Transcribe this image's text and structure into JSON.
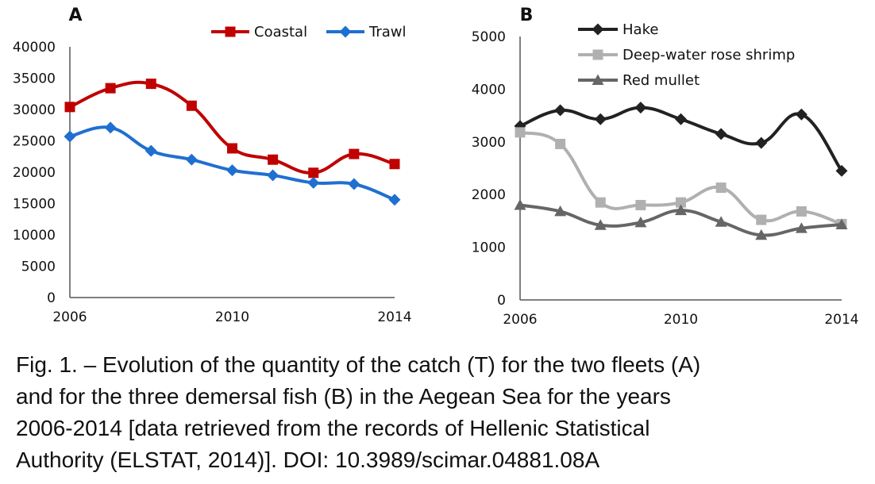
{
  "chart_data": [
    {
      "type": "line",
      "panel_label": "A",
      "x": [
        2006,
        2007,
        2008,
        2009,
        2010,
        2011,
        2012,
        2013,
        2014
      ],
      "xticks": [
        "2006",
        "2010",
        "2014"
      ],
      "ylim": [
        0,
        40000
      ],
      "yticks": [
        "0",
        "5000",
        "10000",
        "15000",
        "20000",
        "25000",
        "30000",
        "35000",
        "40000"
      ],
      "grid": false,
      "legend_position": "top-right, horizontal",
      "series": [
        {
          "name": "Coastal",
          "color": "#c00000",
          "marker": "square",
          "values": [
            30400,
            33400,
            34100,
            30600,
            23800,
            22000,
            19900,
            22900,
            21300
          ]
        },
        {
          "name": "Trawl",
          "color": "#1f6fd0",
          "marker": "diamond",
          "values": [
            25700,
            27100,
            23400,
            22000,
            20300,
            19500,
            18300,
            18100,
            15600
          ]
        }
      ]
    },
    {
      "type": "line",
      "panel_label": "B",
      "x": [
        2006,
        2007,
        2008,
        2009,
        2010,
        2011,
        2012,
        2013,
        2014
      ],
      "xticks": [
        "2006",
        "2010",
        "2014"
      ],
      "ylim": [
        0,
        5000
      ],
      "yticks": [
        "0",
        "1000",
        "2000",
        "3000",
        "4000",
        "5000"
      ],
      "grid": false,
      "legend_position": "top-left, stacked",
      "series": [
        {
          "name": "Hake",
          "color": "#222222",
          "marker": "diamond",
          "values": [
            3300,
            3600,
            3430,
            3650,
            3430,
            3150,
            2980,
            3520,
            2450
          ]
        },
        {
          "name": "Deep-water rose shrimp",
          "color": "#b0b0b0",
          "marker": "square",
          "values": [
            3180,
            2960,
            1850,
            1800,
            1850,
            2130,
            1520,
            1680,
            1440
          ]
        },
        {
          "name": "Red mullet",
          "color": "#666666",
          "marker": "triangle",
          "values": [
            1800,
            1680,
            1420,
            1470,
            1700,
            1480,
            1230,
            1360,
            1430
          ]
        }
      ]
    }
  ],
  "caption": {
    "lines": [
      "Fig. 1. – Evolution of the quantity of the catch (T) for the two fleets (A)",
      "and for the three demersal fish (B) in the Aegean Sea for the years",
      "2006-2014 [data retrieved from the records of Hellenic Statistical",
      "Authority (ELSTAT, 2014)]. DOI: 10.3989/scimar.04881.08A"
    ]
  }
}
